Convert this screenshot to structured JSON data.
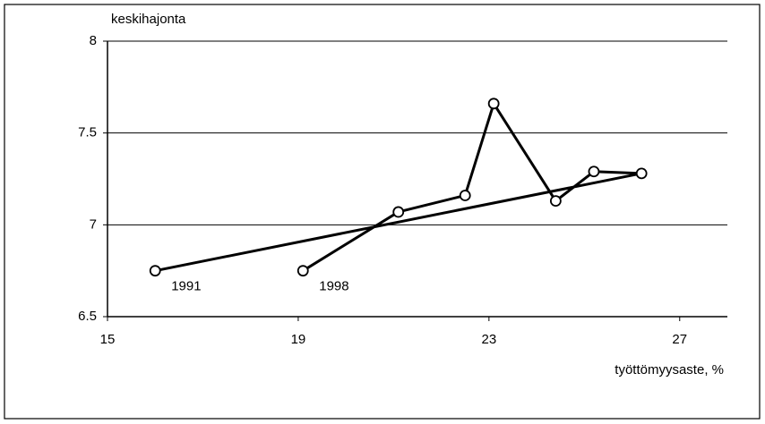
{
  "chart_data": {
    "type": "line",
    "y_label": "keskihajonta",
    "x_label": "työttömyysaste, %",
    "x": [
      16.0,
      26.2,
      25.2,
      24.4,
      23.1,
      22.5,
      21.1,
      19.1
    ],
    "series": [
      {
        "name": null,
        "color": "#000000",
        "values": [
          6.75,
          7.28,
          7.29,
          7.13,
          7.66,
          7.16,
          7.07,
          6.75
        ]
      }
    ],
    "annotations": [
      {
        "text": "1991",
        "x": 16.0,
        "y": 6.75
      },
      {
        "text": "1998",
        "x": 19.1,
        "y": 6.75
      }
    ],
    "xlim": [
      15,
      28
    ],
    "xticks": [
      15,
      19,
      23,
      27
    ],
    "ylim": [
      6.5,
      8
    ],
    "yticks": [
      6.5,
      7,
      7.5,
      8
    ],
    "grid": true
  }
}
